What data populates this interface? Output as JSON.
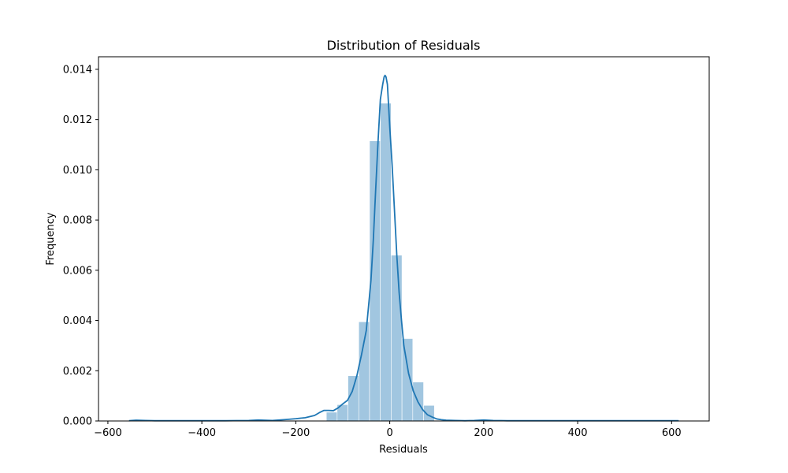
{
  "chart_data": {
    "type": "bar",
    "title": "Distribution of Residuals",
    "xlabel": "Residuals",
    "ylabel": "Frequency",
    "xlim": [
      -620,
      680
    ],
    "ylim": [
      0,
      0.0145
    ],
    "x_ticks": [
      -600,
      -400,
      -200,
      0,
      200,
      400,
      600
    ],
    "x_tick_labels": [
      "−600",
      "−400",
      "−200",
      "0",
      "200",
      "400",
      "600"
    ],
    "y_ticks": [
      0,
      0.002,
      0.004,
      0.006,
      0.008,
      0.01,
      0.012,
      0.014
    ],
    "y_tick_labels": [
      "0.000",
      "0.002",
      "0.004",
      "0.006",
      "0.008",
      "0.010",
      "0.012",
      "0.014"
    ],
    "grid": false,
    "histogram": {
      "bin_edges": [
        -135,
        -112,
        -89,
        -66,
        -43,
        -20,
        3,
        26,
        49,
        72,
        95
      ],
      "values": [
        0.00035,
        0.00065,
        0.0018,
        0.00395,
        0.01115,
        0.01265,
        0.0066,
        0.00328,
        0.00155,
        0.00062
      ],
      "color": "#a1c6e0"
    },
    "kde": {
      "color": "#1f77b4",
      "x": [
        -555,
        -540,
        -520,
        -500,
        -450,
        -400,
        -350,
        -300,
        -280,
        -250,
        -220,
        -200,
        -180,
        -160,
        -150,
        -140,
        -130,
        -120,
        -110,
        -100,
        -90,
        -80,
        -70,
        -60,
        -50,
        -40,
        -35,
        -30,
        -25,
        -20,
        -15,
        -12,
        -10,
        -8,
        -5,
        -2,
        0,
        5,
        10,
        15,
        20,
        25,
        30,
        40,
        50,
        60,
        70,
        80,
        90,
        100,
        110,
        120,
        140,
        160,
        180,
        200,
        220,
        250,
        300,
        400,
        500,
        600,
        615
      ],
      "y": [
        1e-05,
        3e-05,
        2e-05,
        1e-05,
        1e-05,
        1e-05,
        1e-05,
        2e-05,
        4e-05,
        2e-05,
        6e-05,
        9e-05,
        0.00013,
        0.00022,
        0.00033,
        0.00042,
        0.00042,
        0.00041,
        0.00052,
        0.00068,
        0.00082,
        0.00117,
        0.0018,
        0.00265,
        0.0036,
        0.0056,
        0.0072,
        0.0092,
        0.0111,
        0.0128,
        0.0134,
        0.0137,
        0.01376,
        0.0137,
        0.0134,
        0.0124,
        0.0117,
        0.0102,
        0.0084,
        0.0066,
        0.0051,
        0.004,
        0.003,
        0.0019,
        0.0012,
        0.00076,
        0.00045,
        0.00025,
        0.00016,
        8e-05,
        5e-05,
        3e-05,
        2e-05,
        1e-05,
        2e-05,
        4e-05,
        2e-05,
        1e-05,
        1e-05,
        1e-05,
        1e-05,
        1e-05,
        1e-05
      ]
    }
  }
}
